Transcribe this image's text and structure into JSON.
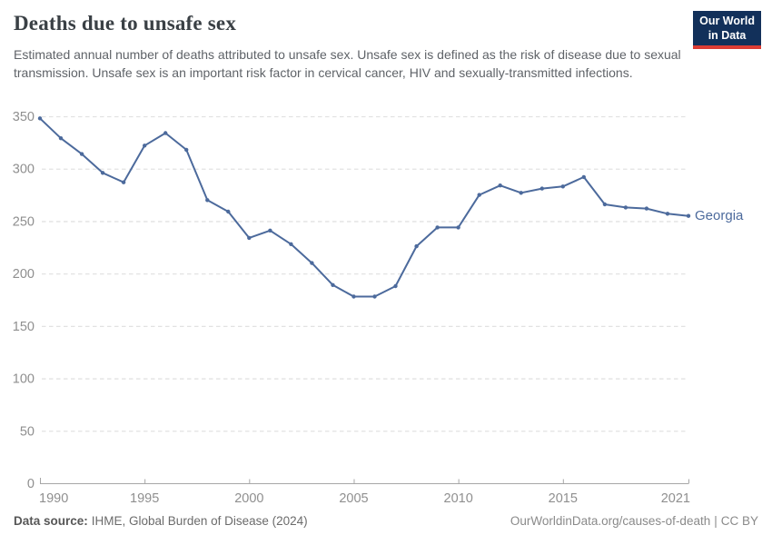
{
  "header": {
    "title": "Deaths due to unsafe sex",
    "subtitle": "Estimated annual number of deaths attributed to unsafe sex. Unsafe sex is defined as the risk of disease due to sexual transmission. Unsafe sex is an important risk factor in cervical cancer, HIV and sexually-transmitted infections.",
    "logo": {
      "line1": "Our World",
      "line2": "in Data",
      "bg_color": "#12305a",
      "underline_color": "#dc3c34"
    }
  },
  "chart_data": {
    "type": "line",
    "title": "Deaths due to unsafe sex",
    "x": [
      1990,
      1991,
      1992,
      1993,
      1994,
      1995,
      1996,
      1997,
      1998,
      1999,
      2000,
      2001,
      2002,
      2003,
      2004,
      2005,
      2006,
      2007,
      2008,
      2009,
      2010,
      2011,
      2012,
      2013,
      2014,
      2015,
      2016,
      2017,
      2018,
      2019,
      2020,
      2021
    ],
    "series": [
      {
        "name": "Georgia",
        "color": "#4c6a9c",
        "values": [
          348,
          329,
          314,
          296,
          287,
          322,
          334,
          318,
          270,
          259,
          234,
          241,
          228,
          210,
          189,
          178,
          178,
          188,
          226,
          244,
          244,
          275,
          284,
          277,
          281,
          283,
          292,
          266,
          263,
          262,
          257,
          255
        ]
      }
    ],
    "xlabel": "",
    "ylabel": "",
    "ylim": [
      0,
      350
    ],
    "yticks": [
      0,
      50,
      100,
      150,
      200,
      250,
      300,
      350
    ],
    "xticks": [
      1990,
      1995,
      2000,
      2005,
      2010,
      2015,
      2021
    ],
    "grid": "horizontal-dashed",
    "legend_position": "line-end-label",
    "grid_color": "#e2e2e2",
    "axis_color": "#a6a6a6",
    "tick_label_color": "#8f8f8f"
  },
  "footer": {
    "data_source_label": "Data source:",
    "data_source_value": "IHME, Global Burden of Disease (2024)",
    "link": "OurWorldinData.org/causes-of-death",
    "divider": "|",
    "license": "CC BY"
  }
}
